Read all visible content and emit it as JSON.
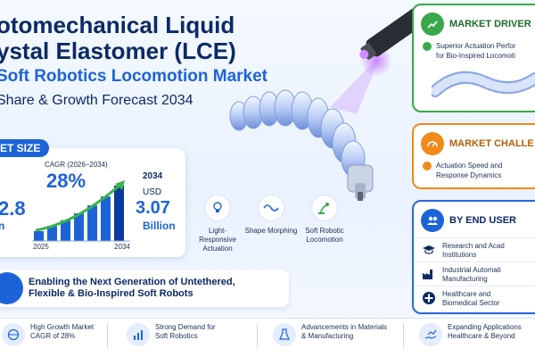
{
  "title": {
    "line1": "otomechanical Liquid",
    "line2": "ystal Elastomer (LCE)",
    "line3": "Soft Robotics Locomotion Market",
    "line4": "Share & Growth Forecast 2034"
  },
  "market_size": {
    "tag": "ET SIZE",
    "cagr_label": "CAGR (2026–2034)",
    "cagr_value": "28%",
    "start_value": "2.8",
    "start_unit": "n",
    "end_year": "2034",
    "currency": "USD",
    "end_value": "3.07",
    "end_unit": "Billion",
    "axis_start": "2025",
    "axis_end": "2034"
  },
  "chart_data": {
    "type": "bar",
    "categories": [
      "",
      "",
      "",
      "",
      "",
      "",
      ""
    ],
    "values": [
      1,
      1.5,
      2.1,
      2.8,
      3.6,
      4.5,
      5.6
    ],
    "title": "",
    "xlabel": "",
    "ylabel": "",
    "trend_arrow": true
  },
  "features": [
    {
      "icon": "lightbulb-icon",
      "label": "Light-Responsive Actuation"
    },
    {
      "icon": "wave-icon",
      "label": "Shape Morphing"
    },
    {
      "icon": "robot-arm-icon",
      "label": "Soft Robotic Locomotion"
    }
  ],
  "banner": {
    "line1": "Enabling the Next Generation of Untethered,",
    "line2": "Flexible & Bio-Inspired Soft Robots"
  },
  "bottom_items": [
    {
      "icon": "globe-icon",
      "line1": "High Growth Market",
      "line2": "CAGR of 28%"
    },
    {
      "icon": "bar-chart-icon",
      "line1": "Strong Demand for",
      "line2": "Soft Robotics"
    },
    {
      "icon": "flask-icon",
      "line1": "Advancements in Materials",
      "line2": "& Manufacturing"
    },
    {
      "icon": "hand-growth-icon",
      "line1": "Expanding Applications",
      "line2": "Healthcare & Beyond"
    }
  ],
  "drivers": {
    "heading": "MARKET DRIVER",
    "item_line1": "Superior Actuation Perfor",
    "item_line2": "for Bio-Inspired Locomoti"
  },
  "challenges": {
    "heading": "MARKET CHALLE",
    "item_line1": "Actuation Speed and",
    "item_line2": "Response Dynamics"
  },
  "end_user": {
    "heading": "BY END USER",
    "items": [
      {
        "icon": "graduation-cap-icon",
        "line1": "Research and Acad",
        "line2": "Institutions"
      },
      {
        "icon": "factory-icon",
        "line1": "Industrial Automati",
        "line2": "Manufacturing"
      },
      {
        "icon": "medical-cross-icon",
        "line1": "Healthcare and",
        "line2": "Biomedical Sector"
      }
    ]
  },
  "colors": {
    "primary_blue": "#1d63d8",
    "navy": "#0b2a66",
    "green": "#38a84a",
    "orange": "#f08a1a"
  }
}
